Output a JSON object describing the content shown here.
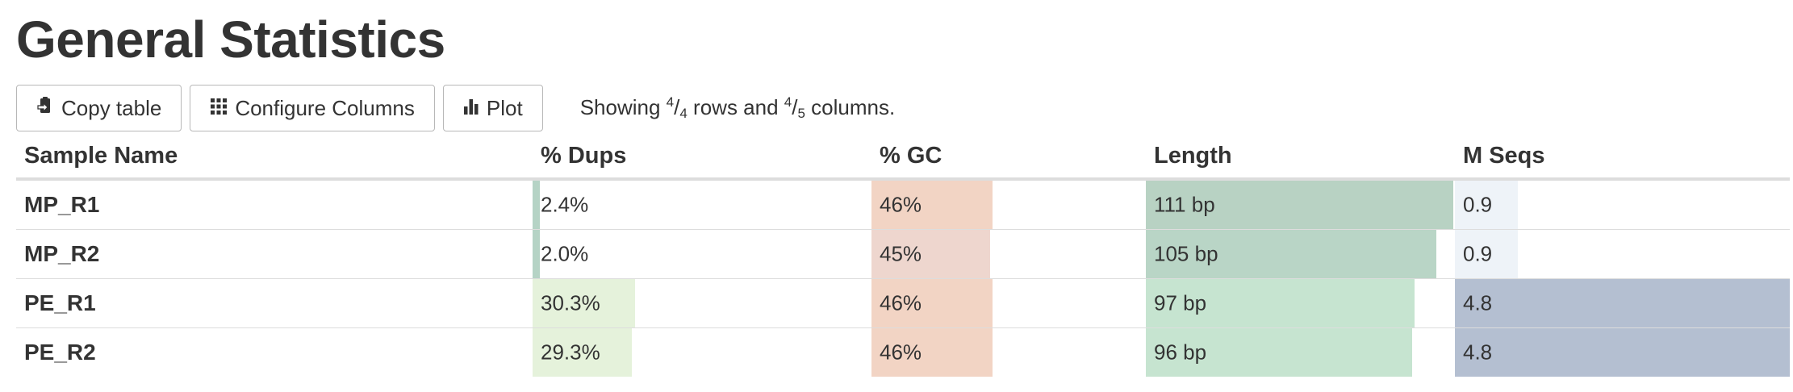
{
  "page": {
    "title": "General Statistics"
  },
  "toolbar": {
    "copy_label": "Copy table",
    "configure_label": "Configure Columns",
    "plot_label": "Plot",
    "showing_prefix": "Showing ",
    "rows_num": "4",
    "rows_den": "4",
    "rows_text": " rows and ",
    "cols_num": "4",
    "cols_den": "5",
    "cols_text": " columns."
  },
  "table": {
    "headers": {
      "sample": "Sample Name",
      "dups": "% Dups",
      "gc": "% GC",
      "length": "Length",
      "seqs": "M Seqs"
    },
    "rows": [
      {
        "name": "MP_R1",
        "dups": "2.4%",
        "gc": "46%",
        "length": "111 bp",
        "seqs": "0.9"
      },
      {
        "name": "MP_R2",
        "dups": "2.0%",
        "gc": "45%",
        "length": "105 bp",
        "seqs": "0.9"
      },
      {
        "name": "PE_R1",
        "dups": "30.3%",
        "gc": "46%",
        "length": "97 bp",
        "seqs": "4.8"
      },
      {
        "name": "PE_R2",
        "dups": "29.3%",
        "gc": "46%",
        "length": "96 bp",
        "seqs": "4.8"
      }
    ]
  },
  "bar_levels": {
    "dups": [
      0.024,
      0.02,
      0.303,
      0.293
    ],
    "gc": [
      0.46,
      0.45,
      0.46,
      0.46
    ],
    "length": [
      111,
      105,
      97,
      96
    ],
    "seqs": [
      0.9,
      0.9,
      4.8,
      4.8
    ]
  },
  "colors": {
    "dups": [
      "#b5d3c5",
      "#b5d3c5",
      "#e5f2db",
      "#e5f2db"
    ],
    "gc": [
      "#f2d4c4",
      "#eed6ce",
      "#f2d4c4",
      "#f2d4c4"
    ],
    "length": [
      "#b8d2c3",
      "#b9d5c6",
      "#c6e4d0",
      "#c6e4d0"
    ],
    "seqs": [
      "#eef3f8",
      "#eef3f8",
      "#b4bfd1",
      "#b4bfd1"
    ]
  },
  "icons": {
    "copy": "clipboard-icon",
    "configure": "grid-icon",
    "plot": "bar-chart-icon"
  }
}
